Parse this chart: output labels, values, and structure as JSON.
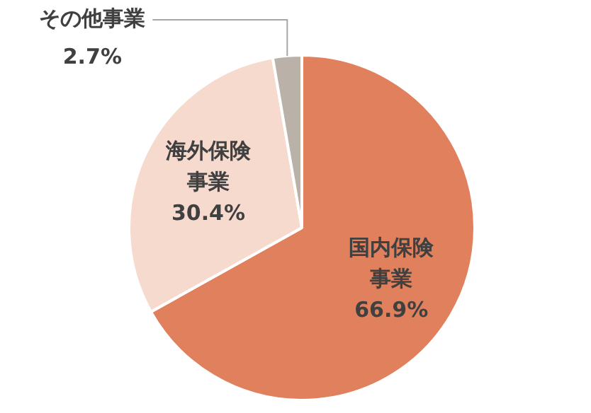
{
  "chart_data": {
    "type": "pie",
    "categories": [
      "国内保険事業",
      "海外保険事業",
      "その他事業"
    ],
    "values": [
      66.9,
      30.4,
      2.7
    ],
    "colors": [
      "#e0805c",
      "#f6dacd",
      "#bab1a9"
    ],
    "value_labels": [
      "66.9%",
      "30.4%",
      "2.7%"
    ],
    "legend": false
  }
}
